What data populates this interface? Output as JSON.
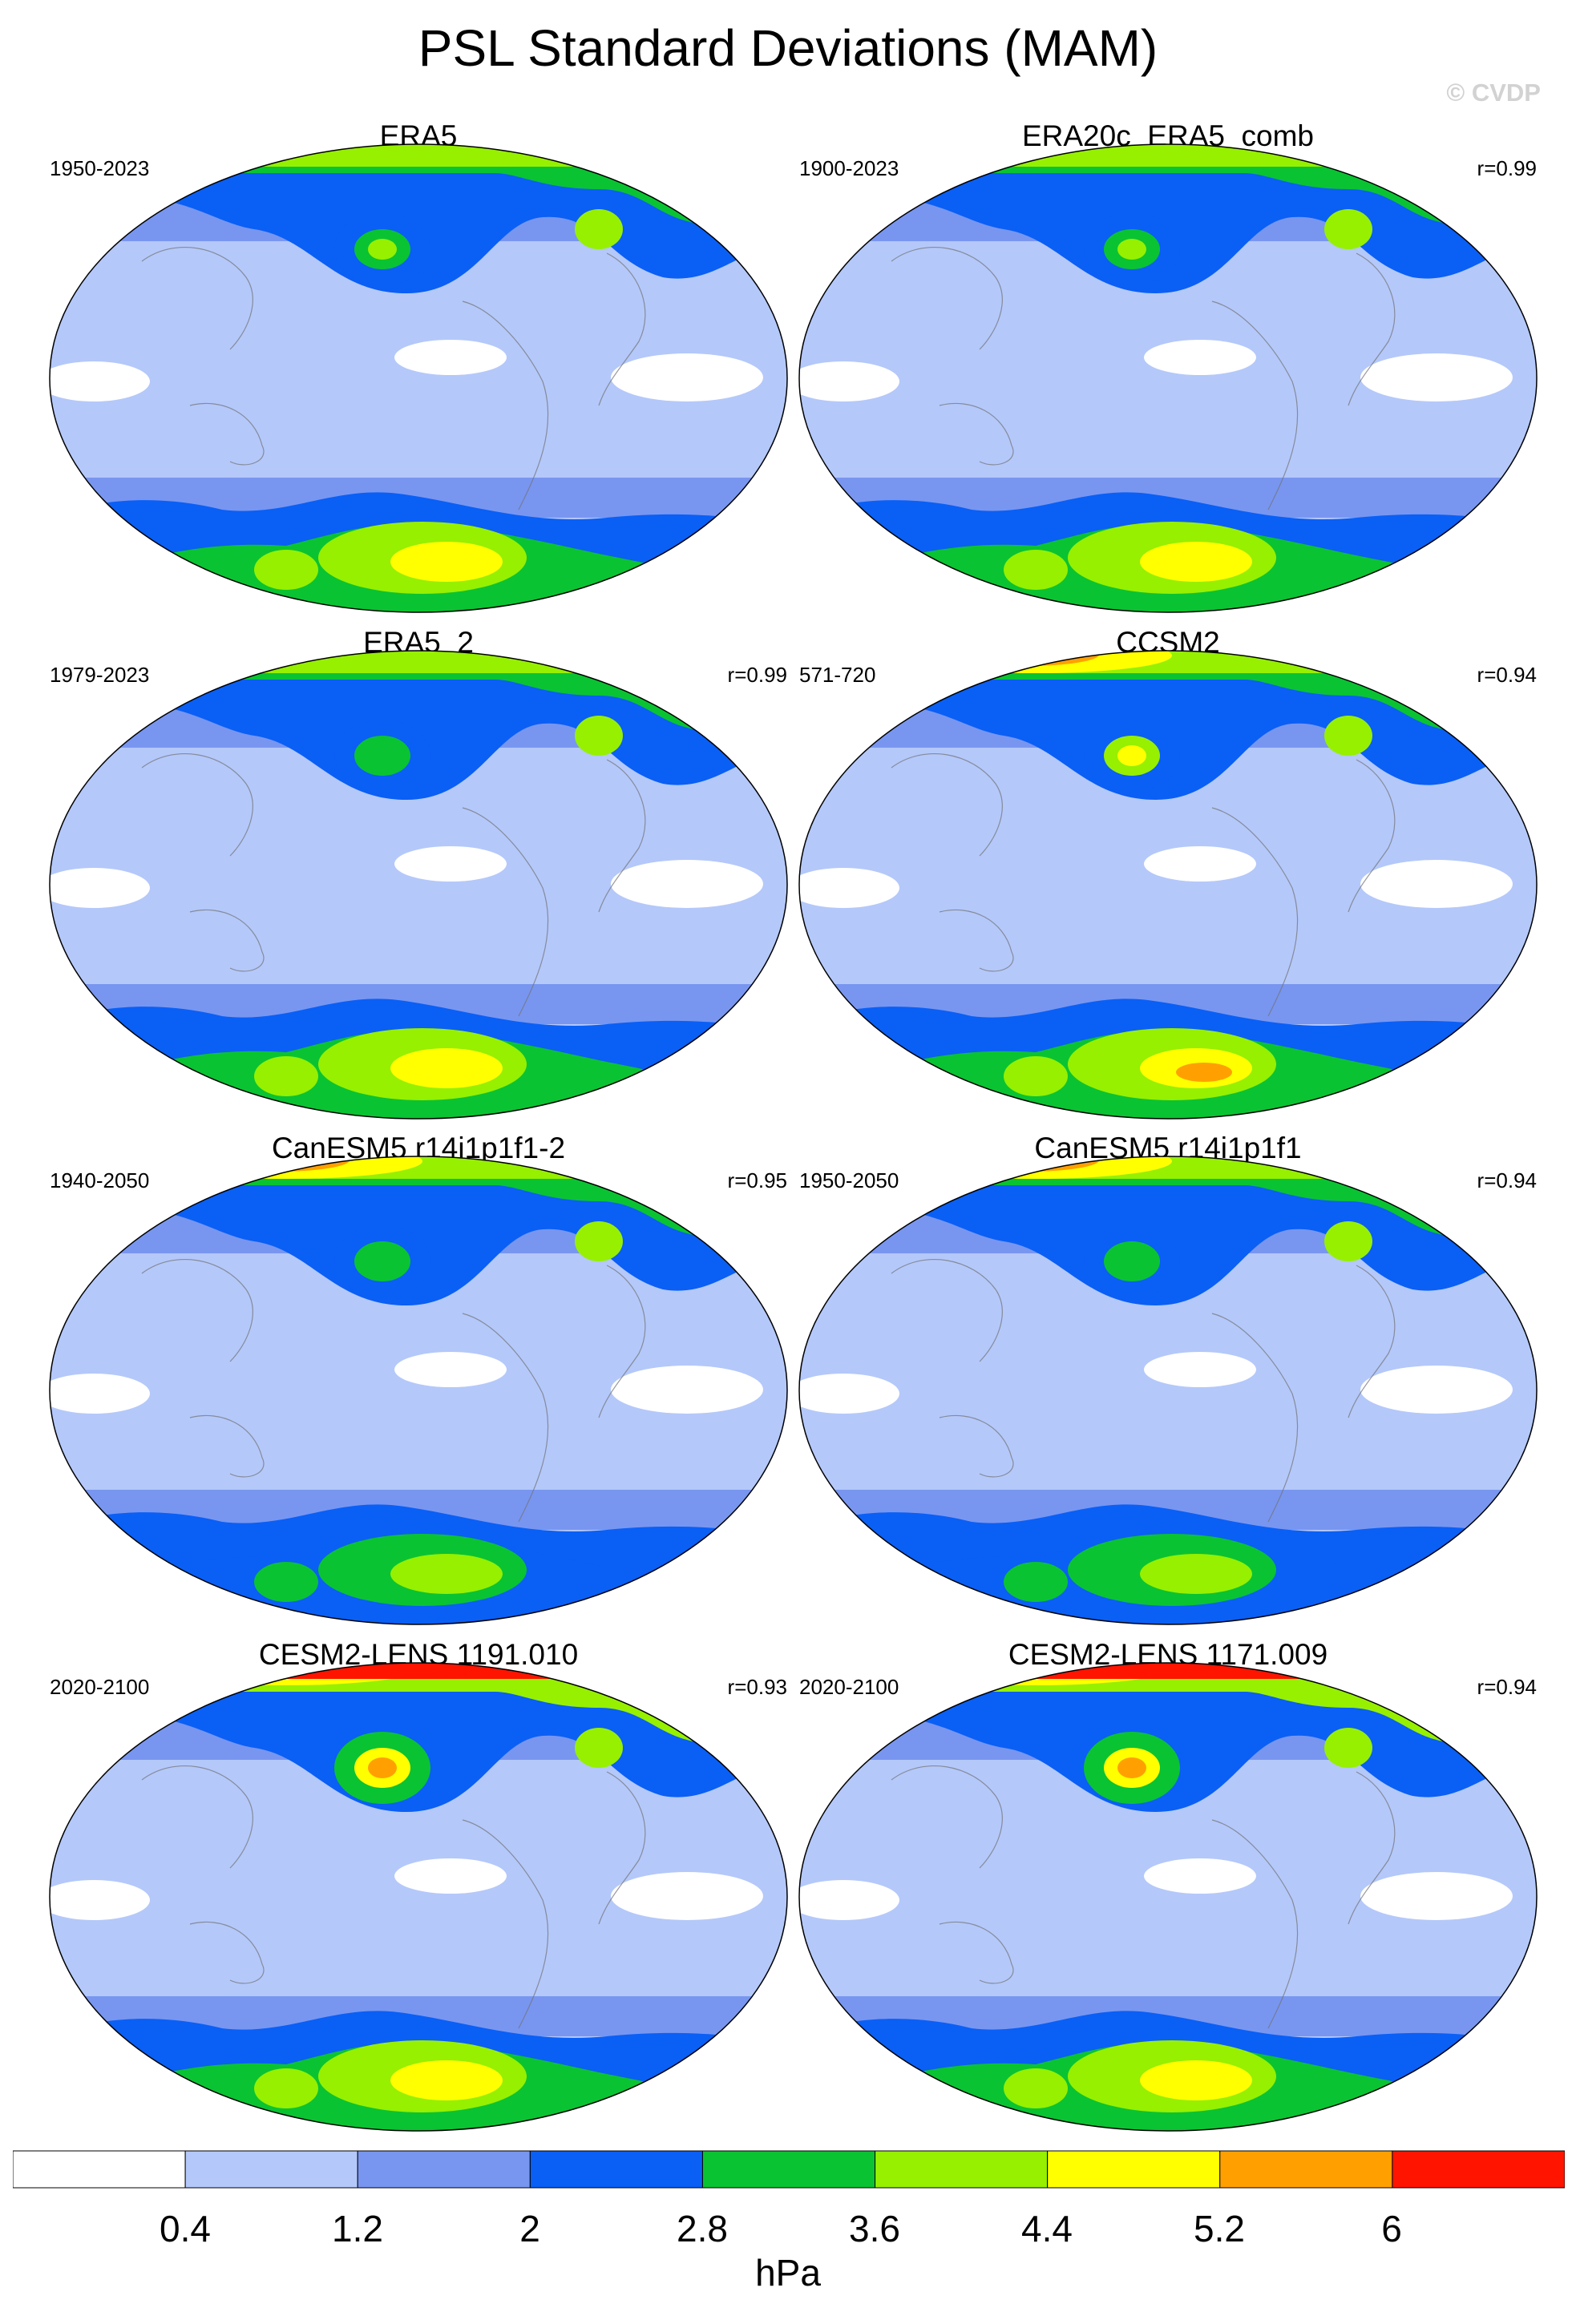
{
  "title": "PSL Standard Deviations (MAM)",
  "copyright": "© CVDP",
  "colorbar": {
    "units": "hPa",
    "levels": [
      "0.4",
      "1.2",
      "2",
      "2.8",
      "3.6",
      "4.4",
      "5.2",
      "6"
    ],
    "colors": [
      "#ffffff",
      "#b4c8fa",
      "#7896f0",
      "#0a5ff5",
      "#0ac332",
      "#96f000",
      "#ffff00",
      "#ffa000",
      "#ff1400"
    ]
  },
  "panels": [
    {
      "name": "ERA5",
      "period": "1950-2023",
      "r": ""
    },
    {
      "name": "ERA20c_ERA5_comb",
      "period": "1900-2023",
      "r": "r=0.99"
    },
    {
      "name": "ERA5_2",
      "period": "1979-2023",
      "r": "r=0.99"
    },
    {
      "name": "CCSM2",
      "period": "571-720",
      "r": "r=0.94"
    },
    {
      "name": "CanESM5 r14i1p1f1-2",
      "period": "1940-2050",
      "r": "r=0.95"
    },
    {
      "name": "CanESM5 r14i1p1f1",
      "period": "1950-2050",
      "r": "r=0.94"
    },
    {
      "name": "CESM2-LENS 1191.010",
      "period": "2020-2100",
      "r": "r=0.93"
    },
    {
      "name": "CESM2-LENS 1171.009",
      "period": "2020-2100",
      "r": "r=0.94"
    }
  ]
}
